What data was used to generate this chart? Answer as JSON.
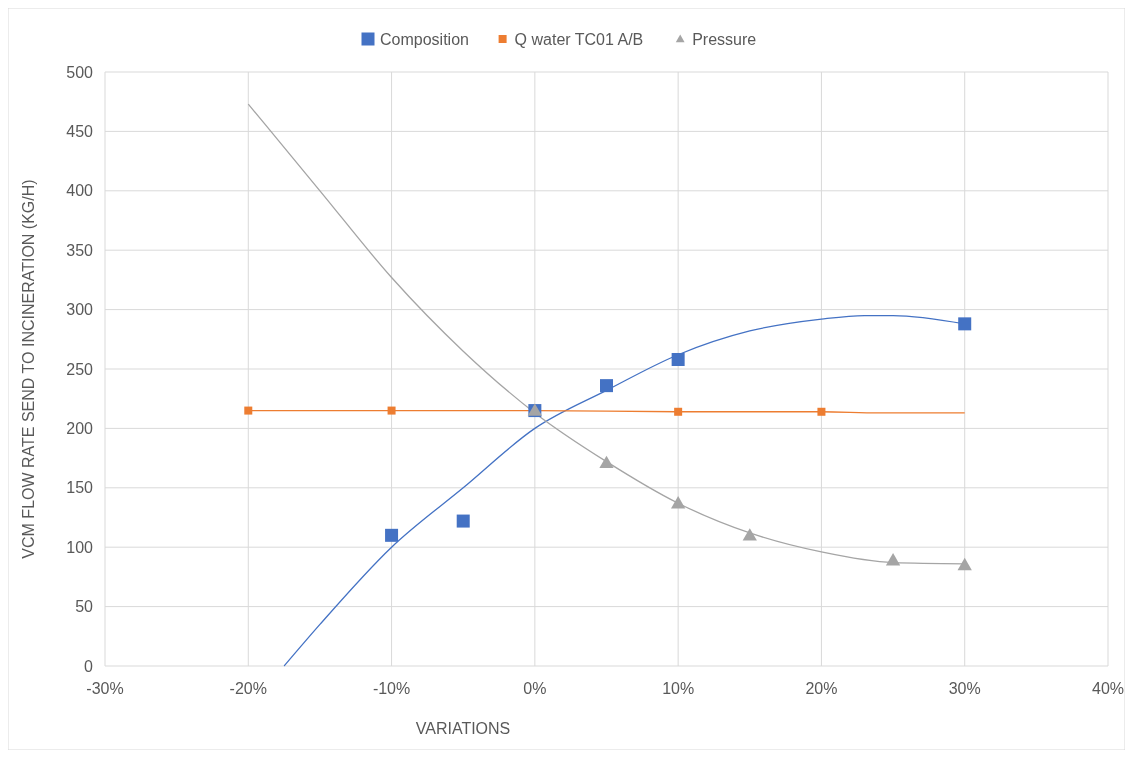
{
  "chart_data": {
    "type": "scatter",
    "xlabel": "VARIATIONS",
    "ylabel": "VCM FLOW RATE SEND TO  INCINERATION (KG/H)",
    "grid": true,
    "legend": "top",
    "xlim": [
      -30,
      40
    ],
    "xticks": [
      {
        "value": -30,
        "label": "-30%"
      },
      {
        "value": -20,
        "label": "-20%"
      },
      {
        "value": -10,
        "label": "-10%"
      },
      {
        "value": 0,
        "label": "0%"
      },
      {
        "value": 10,
        "label": "10%"
      },
      {
        "value": 20,
        "label": "20%"
      },
      {
        "value": 30,
        "label": "30%"
      },
      {
        "value": 40,
        "label": "40%"
      }
    ],
    "ylim": [
      0,
      500
    ],
    "yticks": [
      0,
      50,
      100,
      150,
      200,
      250,
      300,
      350,
      400,
      450,
      500
    ],
    "series": [
      {
        "type": "line",
        "color": "#4472c4",
        "x": [
          -17.5,
          -15,
          -10,
          -5,
          0,
          5,
          10,
          15,
          20,
          23,
          25,
          30
        ],
        "values": [
          0,
          35,
          100,
          150,
          200,
          232,
          262,
          282,
          292,
          295,
          295,
          288
        ]
      },
      {
        "type": "line",
        "color": "#ed7d31",
        "x": [
          -20,
          -10,
          0,
          10,
          20,
          24,
          30
        ],
        "values": [
          215,
          215,
          215,
          214,
          214,
          213,
          213
        ]
      },
      {
        "type": "line",
        "color": "#a5a5a5",
        "x": [
          -20,
          -15,
          -10,
          -5,
          0,
          5,
          10,
          15,
          20,
          25,
          30
        ],
        "values": [
          473,
          400,
          327,
          265,
          213,
          172,
          137,
          112,
          96,
          87,
          86
        ]
      },
      {
        "name": "Composition",
        "color": "#4472c4",
        "marker": "square",
        "x": [
          -10,
          -5,
          0,
          5,
          10,
          30
        ],
        "values": [
          110,
          122,
          215,
          236,
          258,
          288
        ]
      },
      {
        "name": "Q water TC01 A/B",
        "color": "#ed7d31",
        "marker": "square",
        "x": [
          -20,
          -10,
          10,
          20
        ],
        "values": [
          215,
          215,
          214,
          214
        ]
      },
      {
        "name": "Pressure",
        "color": "#a5a5a5",
        "marker": "triangle",
        "x": [
          0,
          5,
          10,
          15,
          25,
          30
        ],
        "values": [
          215,
          171,
          137,
          110,
          89,
          85
        ]
      }
    ]
  }
}
